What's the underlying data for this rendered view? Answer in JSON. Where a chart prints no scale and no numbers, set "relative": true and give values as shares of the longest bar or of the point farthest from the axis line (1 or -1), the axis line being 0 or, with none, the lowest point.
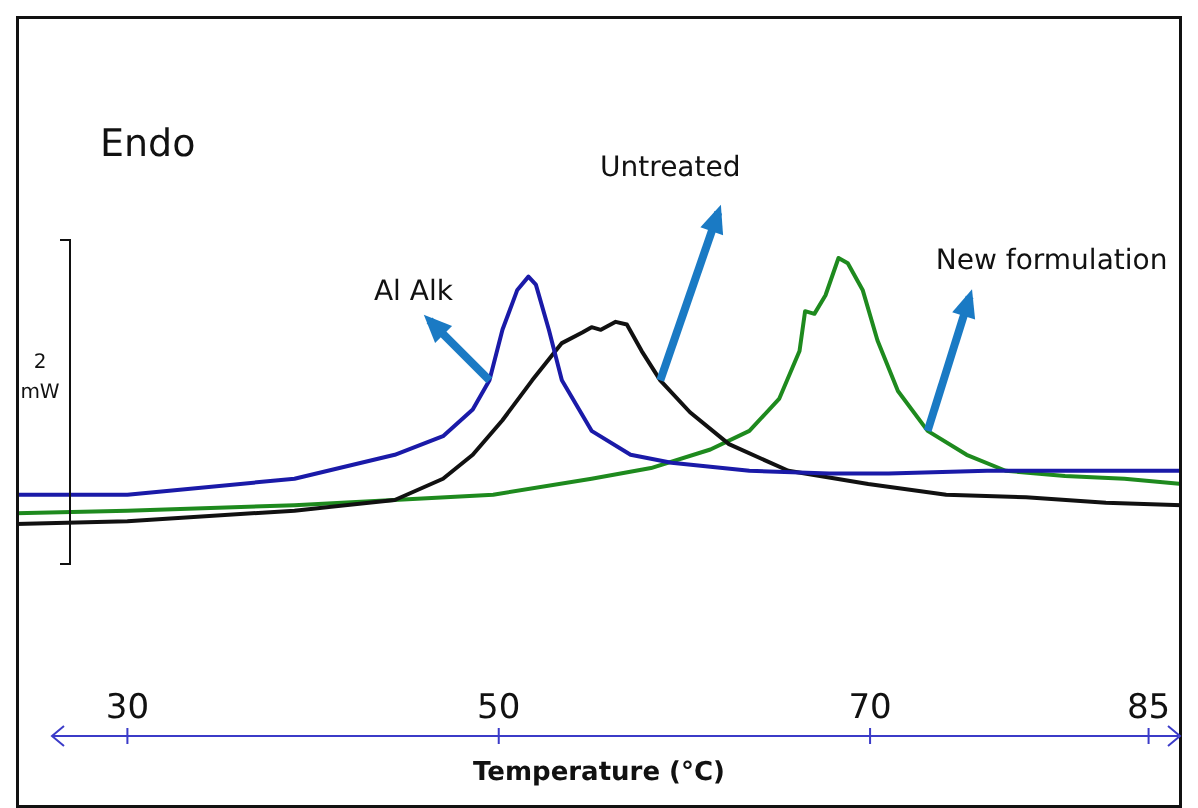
{
  "chart_data": {
    "type": "line",
    "relative": true,
    "xlabel": "Temperature (°C)",
    "ylabel": "2 mW",
    "annotations": [
      "Endo"
    ],
    "xlim": [
      24,
      86.8
    ],
    "xticks": [
      30,
      50,
      70,
      85
    ],
    "legend": false,
    "marker": "none",
    "line_style": "solid",
    "series": [
      {
        "name": "Al Alk",
        "color": "#1a1aa8",
        "x": [
          24,
          30,
          39,
          44.4,
          47,
          48.6,
          49.5,
          50.2,
          51,
          51.6,
          52,
          52.7,
          53.4,
          55,
          57.1,
          59.3,
          63.5,
          67.8,
          71,
          76.3,
          80.5,
          86.8
        ],
        "values": [
          0.11,
          0.11,
          0.17,
          0.26,
          0.33,
          0.43,
          0.54,
          0.73,
          0.88,
          0.93,
          0.9,
          0.73,
          0.54,
          0.35,
          0.26,
          0.23,
          0.2,
          0.19,
          0.19,
          0.2,
          0.2,
          0.2
        ]
      },
      {
        "name": "Untreated",
        "color": "#111111",
        "x": [
          24,
          30,
          39,
          44.4,
          47,
          48.6,
          50.2,
          51.8,
          53.4,
          54.5,
          55,
          55.5,
          56.3,
          56.9,
          57.7,
          58.7,
          60.3,
          62.4,
          65.6,
          69.9,
          74.1,
          78.4,
          82.7,
          86.8
        ],
        "values": [
          0,
          0.01,
          0.05,
          0.09,
          0.17,
          0.26,
          0.39,
          0.54,
          0.68,
          0.72,
          0.74,
          0.73,
          0.76,
          0.75,
          0.65,
          0.54,
          0.42,
          0.3,
          0.2,
          0.15,
          0.11,
          0.1,
          0.08,
          0.07
        ]
      },
      {
        "name": "New formulation",
        "color": "#1e8a1e",
        "x": [
          24,
          30,
          39,
          49.7,
          55,
          58.2,
          61.4,
          63.5,
          65.1,
          66.2,
          66.5,
          67,
          67.6,
          68.3,
          68.8,
          69.6,
          70.4,
          71.5,
          73.1,
          75.2,
          77.3,
          80.5,
          83.7,
          86.8
        ],
        "values": [
          0.04,
          0.05,
          0.07,
          0.11,
          0.17,
          0.21,
          0.28,
          0.35,
          0.47,
          0.65,
          0.8,
          0.79,
          0.86,
          1,
          0.98,
          0.88,
          0.69,
          0.5,
          0.35,
          0.26,
          0.2,
          0.18,
          0.17,
          0.15
        ]
      }
    ]
  }
}
